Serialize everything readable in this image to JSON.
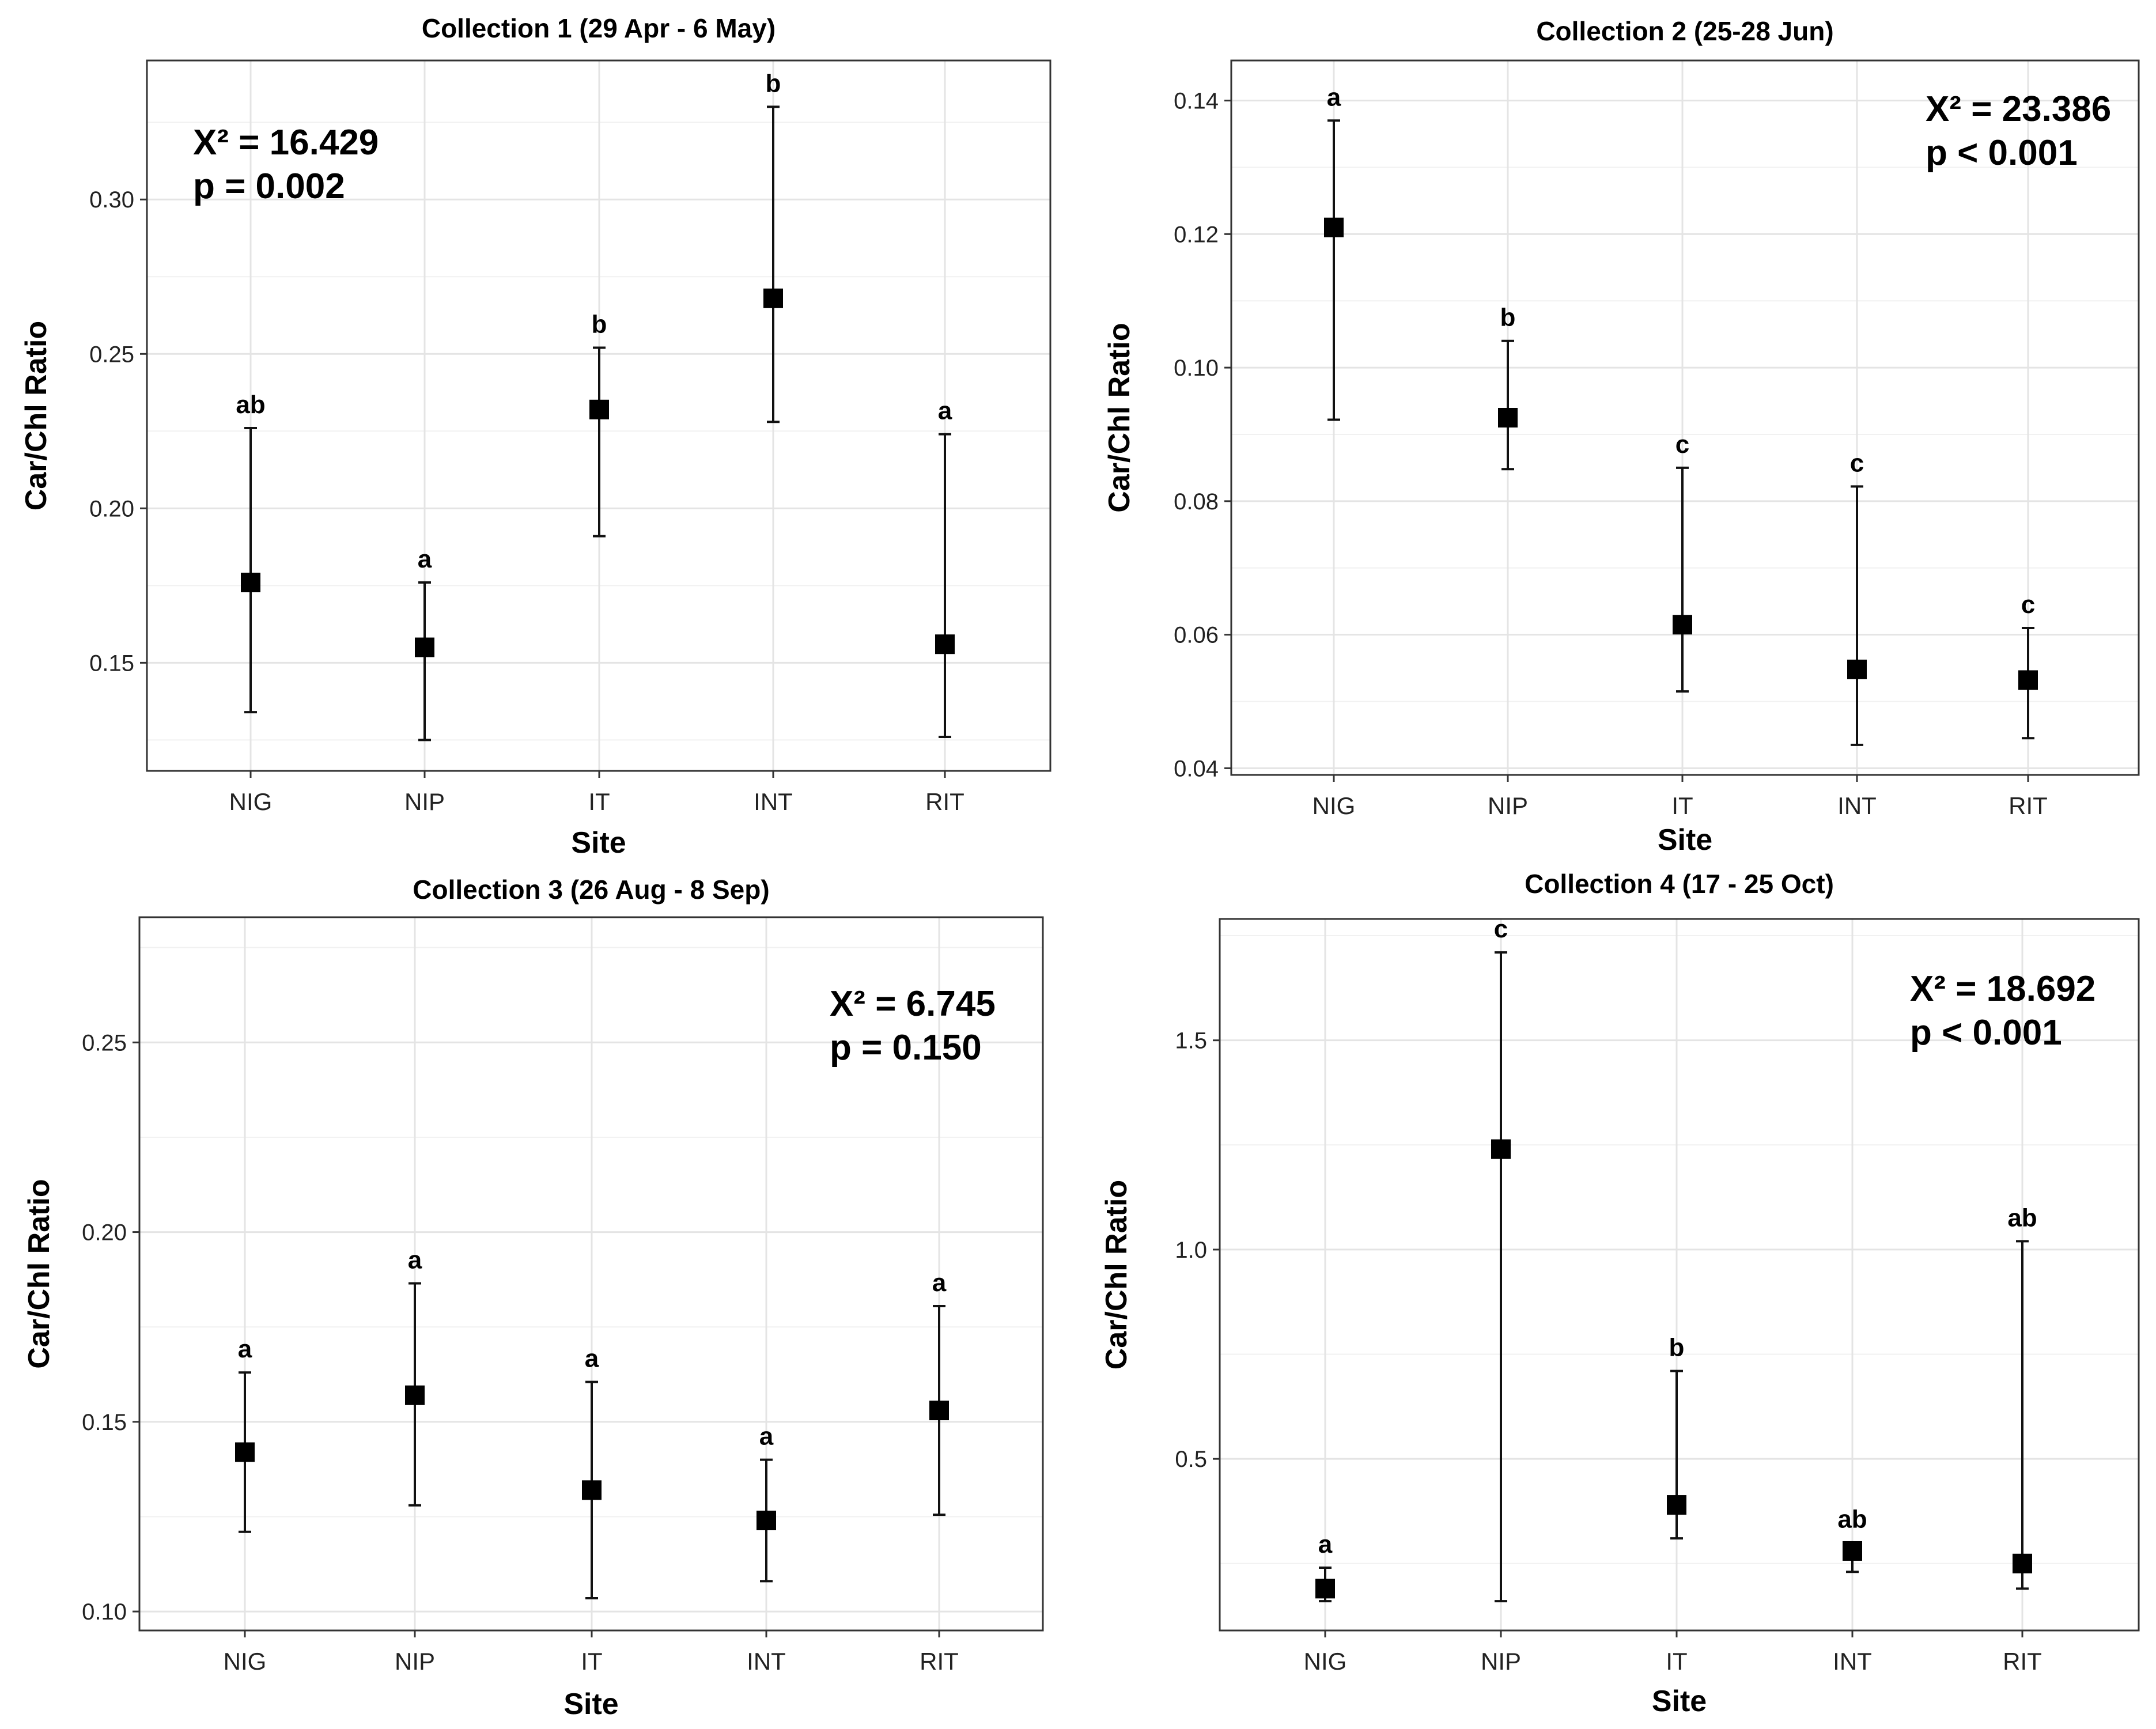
{
  "chart_data": [
    {
      "type": "scatter",
      "title": "Collection 1 (29 Apr - 6 May)",
      "xlabel": "Site",
      "ylabel": "Car/Chl Ratio",
      "categories": [
        "NIG",
        "NIP",
        "IT",
        "INT",
        "RIT"
      ],
      "series": [
        {
          "name": "Car/Chl Ratio",
          "values": [
            0.176,
            0.155,
            0.232,
            0.268,
            0.156
          ],
          "lower": [
            0.134,
            0.125,
            0.191,
            0.228,
            0.126
          ],
          "upper": [
            0.226,
            0.176,
            0.252,
            0.33,
            0.224
          ],
          "letters": [
            "ab",
            "a",
            "b",
            "b",
            "a"
          ]
        }
      ],
      "ylim": [
        0.115,
        0.345
      ],
      "yticks": [
        0.15,
        0.2,
        0.25,
        0.3
      ],
      "ytick_labels": [
        "0.15",
        "0.20",
        "0.25",
        "0.30"
      ],
      "stat_lines": [
        "X² = 16.429",
        "p = 0.002"
      ],
      "stat_position": "top-left",
      "grid": true
    },
    {
      "type": "scatter",
      "title": "Collection 2 (25-28 Jun)",
      "xlabel": "Site",
      "ylabel": "Car/Chl Ratio",
      "categories": [
        "NIG",
        "NIP",
        "IT",
        "INT",
        "RIT"
      ],
      "series": [
        {
          "name": "Car/Chl Ratio",
          "values": [
            0.121,
            0.0925,
            0.0615,
            0.0548,
            0.0532
          ],
          "lower": [
            0.0922,
            0.0848,
            0.0515,
            0.0435,
            0.0445
          ],
          "upper": [
            0.137,
            0.104,
            0.085,
            0.0822,
            0.061
          ],
          "letters": [
            "a",
            "b",
            "c",
            "c",
            "c"
          ]
        }
      ],
      "ylim": [
        0.039,
        0.146
      ],
      "yticks": [
        0.04,
        0.06,
        0.08,
        0.1,
        0.12,
        0.14
      ],
      "ytick_labels": [
        "0.04",
        "0.06",
        "0.08",
        "0.10",
        "0.12",
        "0.14"
      ],
      "stat_lines": [
        "X² = 23.386",
        "p < 0.001"
      ],
      "stat_position": "top-right",
      "grid": true
    },
    {
      "type": "scatter",
      "title": "Collection 3 (26 Aug - 8 Sep)",
      "xlabel": "Site",
      "ylabel": "Car/Chl Ratio",
      "categories": [
        "NIG",
        "NIP",
        "IT",
        "INT",
        "RIT"
      ],
      "series": [
        {
          "name": "Car/Chl Ratio",
          "values": [
            0.142,
            0.157,
            0.132,
            0.124,
            0.153
          ],
          "lower": [
            0.121,
            0.128,
            0.1035,
            0.108,
            0.1255
          ],
          "upper": [
            0.163,
            0.1865,
            0.1605,
            0.14,
            0.1805
          ],
          "letters": [
            "a",
            "a",
            "a",
            "a",
            "a"
          ]
        }
      ],
      "ylim": [
        0.095,
        0.283
      ],
      "yticks": [
        0.1,
        0.15,
        0.2,
        0.25
      ],
      "ytick_labels": [
        "0.10",
        "0.15",
        "0.20",
        "0.25"
      ],
      "stat_lines": [
        "X² = 6.745",
        "p = 0.150"
      ],
      "stat_position": "top-right",
      "grid": true
    },
    {
      "type": "scatter",
      "title": "Collection 4 (17 - 25 Oct)",
      "xlabel": "Site",
      "ylabel": "Car/Chl Ratio",
      "categories": [
        "NIG",
        "NIP",
        "IT",
        "INT",
        "RIT"
      ],
      "series": [
        {
          "name": "Car/Chl Ratio",
          "values": [
            0.19,
            1.24,
            0.39,
            0.28,
            0.25
          ],
          "lower": [
            0.16,
            0.16,
            0.31,
            0.23,
            0.19
          ],
          "upper": [
            0.24,
            1.71,
            0.71,
            0.3,
            1.02
          ],
          "letters": [
            "a",
            "c",
            "b",
            "ab",
            "ab"
          ]
        }
      ],
      "ylim": [
        0.09,
        1.79
      ],
      "yticks": [
        0.5,
        1.0,
        1.5
      ],
      "ytick_labels": [
        "0.5",
        "1.0",
        "1.5"
      ],
      "stat_lines": [
        "X² = 18.692",
        "p < 0.001"
      ],
      "stat_position": "top-right",
      "grid": true
    }
  ]
}
